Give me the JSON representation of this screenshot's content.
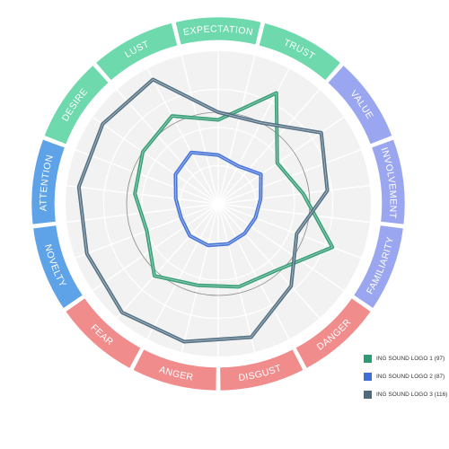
{
  "chart_data": {
    "type": "radar",
    "categories": [
      "EXPECTATION",
      "TRUST",
      "VALUE",
      "INVOLVEMENT",
      "FAMILIARITY",
      "DANGER",
      "DISGUST",
      "ANGER",
      "FEAR",
      "NOVELTY",
      "ATTENTION",
      "DESIRE",
      "LUST"
    ],
    "category_colors": [
      "#6ed9ad",
      "#6ed9ad",
      "#9aa7f0",
      "#9aa7f0",
      "#9aa7f0",
      "#f08c8c",
      "#f08c8c",
      "#f08c8c",
      "#f08c8c",
      "#5ea2e8",
      "#5ea2e8",
      "#6ed9ad",
      "#6ed9ad"
    ],
    "rlim": [
      0,
      100
    ],
    "grid": true,
    "legend_position": "bottom-right",
    "series": [
      {
        "name": "ING SOUND LOGO 1 (97)",
        "color": "#2f9b72",
        "values": [
          55,
          82,
          47,
          56,
          80,
          58,
          56,
          55,
          63,
          50,
          55,
          60,
          65
        ]
      },
      {
        "name": "ING SOUND LOGO 2 (87)",
        "color": "#3f6fd6",
        "values": [
          32,
          28,
          34,
          28,
          26,
          26,
          27,
          28,
          28,
          26,
          28,
          34,
          38
        ]
      },
      {
        "name": "ING SOUND LOGO 3 (116)",
        "color": "#4d6a7e",
        "values": [
          60,
          60,
          82,
          72,
          55,
          72,
          90,
          93,
          95,
          92,
          92,
          92,
          92
        ]
      }
    ]
  }
}
